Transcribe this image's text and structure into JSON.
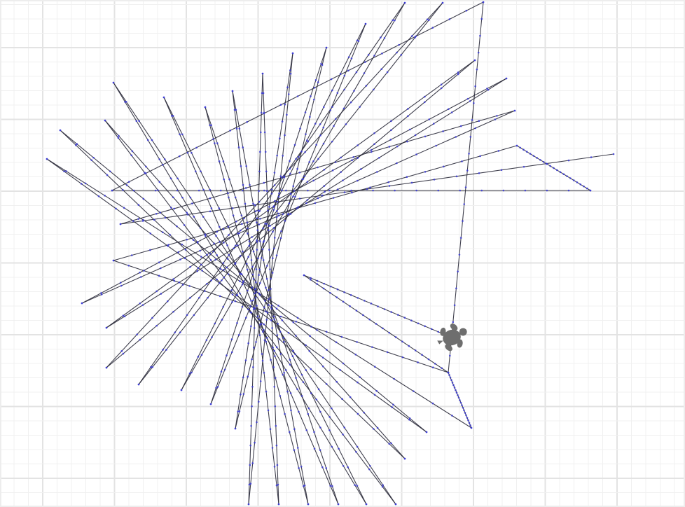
{
  "colors": {
    "background": "#ffffff",
    "grid_minor": "#f0f0f0",
    "grid_major": "#e3e3e3",
    "grid_border": "#ededed",
    "path_line": "#2b2b3a",
    "vertex_dot": "#3b3bd6",
    "turtle": "#6e6e6e"
  },
  "icons": {
    "turtle": "turtle-icon"
  },
  "turtle_program": {
    "start_heading_deg": 0,
    "segment_count": 60,
    "turn_deg": 148,
    "dots_per_segment": 22,
    "end_marker": "turtle"
  }
}
